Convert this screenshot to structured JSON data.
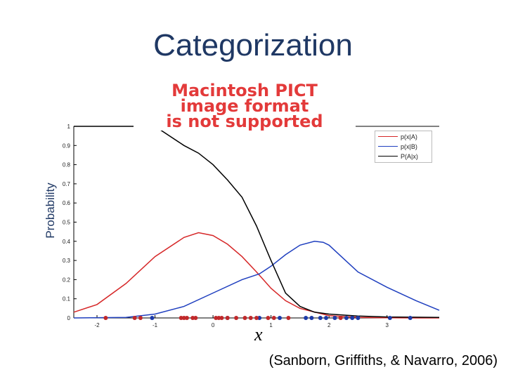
{
  "slide": {
    "title": "Categorization",
    "citation": "(Sanborn, Griffiths, & Navarro, 2006)",
    "pict_notice": [
      "Macintosh PICT",
      "image format",
      "is not supported"
    ]
  },
  "chart_data": {
    "type": "line",
    "ylabel": "Probability",
    "xlabel": "x",
    "xlim": [
      -2.4,
      3.9
    ],
    "ylim": [
      0,
      1
    ],
    "xticks": [
      -2,
      -1,
      0,
      1,
      2,
      3
    ],
    "yticks": [
      0,
      0.1,
      0.2,
      0.3,
      0.4,
      0.5,
      0.6,
      0.7,
      0.8,
      0.9,
      1
    ],
    "legend_position": "top-right",
    "series": [
      {
        "name": "p(x|A)",
        "color": "#d62728",
        "x": [
          -2.4,
          -2.0,
          -1.5,
          -1.0,
          -0.5,
          -0.25,
          0.0,
          0.25,
          0.5,
          0.75,
          1.0,
          1.25,
          1.5,
          2.0,
          2.5,
          3.0,
          3.5,
          3.9
        ],
        "y": [
          0.03,
          0.07,
          0.18,
          0.32,
          0.42,
          0.445,
          0.43,
          0.385,
          0.32,
          0.24,
          0.155,
          0.09,
          0.05,
          0.012,
          0.003,
          0.001,
          0.0,
          0.0
        ]
      },
      {
        "name": "p(x|B)",
        "color": "#1f3fbf",
        "x": [
          -2.4,
          -1.5,
          -1.0,
          -0.5,
          0.0,
          0.5,
          0.8,
          1.0,
          1.25,
          1.5,
          1.75,
          1.9,
          2.0,
          2.25,
          2.5,
          3.0,
          3.5,
          3.9
        ],
        "y": [
          0.0,
          0.003,
          0.02,
          0.06,
          0.13,
          0.2,
          0.23,
          0.27,
          0.33,
          0.38,
          0.4,
          0.395,
          0.38,
          0.31,
          0.24,
          0.16,
          0.09,
          0.04
        ]
      },
      {
        "name": "P(A|x)",
        "color": "#000000",
        "x": [
          -2.4,
          -1.0,
          -0.5,
          -0.25,
          0.0,
          0.25,
          0.5,
          0.75,
          1.0,
          1.25,
          1.5,
          1.75,
          2.0,
          2.5,
          3.0,
          3.9
        ],
        "y": [
          1.0,
          1.0,
          0.9,
          0.86,
          0.8,
          0.72,
          0.63,
          0.48,
          0.3,
          0.13,
          0.06,
          0.03,
          0.02,
          0.01,
          0.005,
          0.003
        ]
      }
    ],
    "points_A": [
      -1.85,
      -1.35,
      -1.25,
      -0.55,
      -0.5,
      -0.45,
      -0.35,
      -0.3,
      0.05,
      0.1,
      0.15,
      0.25,
      0.4,
      0.55,
      0.65,
      0.75,
      0.95,
      1.05,
      1.3,
      2.2
    ],
    "points_B": [
      -1.05,
      0.25,
      0.8,
      1.15,
      1.6,
      1.7,
      1.85,
      1.95,
      2.1,
      2.3,
      2.4,
      2.5,
      3.05,
      3.4
    ],
    "points_colors": {
      "A": "#c0282a",
      "B": "#1c3aa8"
    }
  }
}
